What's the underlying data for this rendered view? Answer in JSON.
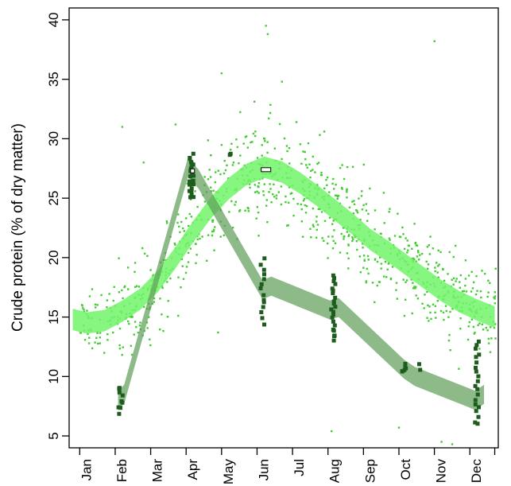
{
  "chart_data": {
    "type": "scatter",
    "ylabel": "Crude protein (% of dry matter)",
    "xlabel": "",
    "ylim": [
      4,
      41
    ],
    "xlim": [
      0.5,
      12.6
    ],
    "categories": [
      "Jan",
      "Feb",
      "Mar",
      "Apr",
      "May",
      "Jun",
      "Jul",
      "Aug",
      "Sep",
      "Oct",
      "Nov",
      "Dec"
    ],
    "x_ticks": [
      1,
      2,
      3,
      4,
      5,
      6,
      7,
      8,
      9,
      10,
      11,
      12
    ],
    "y_ticks": [
      5,
      10,
      15,
      20,
      25,
      30,
      35,
      40
    ],
    "grid": false,
    "series": [
      {
        "kind": "points",
        "color": "#44cc33",
        "trend": {
          "x": [
            0.6,
            1,
            1.5,
            2,
            2.5,
            3,
            3.5,
            4,
            4.5,
            5,
            5.5,
            6,
            6.5,
            7,
            7.5,
            8,
            8.5,
            9,
            9.5,
            10,
            10.5,
            11,
            11.5,
            12,
            12.5
          ],
          "y": [
            14.8,
            14.5,
            14.7,
            15.5,
            16.5,
            18.0,
            20.0,
            22.2,
            24.2,
            25.8,
            27.0,
            27.6,
            27.2,
            26.3,
            25.2,
            24.0,
            22.8,
            21.5,
            20.5,
            19.4,
            18.3,
            17.2,
            16.3,
            15.6,
            15.0
          ],
          "band": 0.9
        },
        "anchors": {
          "x": [
            1,
            1.5,
            2,
            2.5,
            3,
            3.5,
            4,
            4.5,
            5,
            5.5,
            6,
            6.5,
            7,
            7.5,
            8,
            8.5,
            9,
            9.5,
            10,
            10.5,
            11,
            11.5,
            12,
            12.5
          ],
          "sd": [
            2.5,
            2.5,
            2.8,
            3,
            3.2,
            3.5,
            3.8,
            4,
            4,
            4,
            3.8,
            3.6,
            3.5,
            3.5,
            3.6,
            3.6,
            3.5,
            3.4,
            3.4,
            3.3,
            3.2,
            3.2,
            3.2,
            3
          ]
        },
        "outliers": [
          [
            6.05,
            39.5
          ],
          [
            6.1,
            38.8
          ],
          [
            10.8,
            38.2
          ],
          [
            4.8,
            35.5
          ],
          [
            2.0,
            31.0
          ],
          [
            7.9,
            5.4
          ],
          [
            9.8,
            5.7
          ],
          [
            11.0,
            4.5
          ],
          [
            11.3,
            4.3
          ],
          [
            4.7,
            13.7
          ],
          [
            5.5,
            30.2
          ],
          [
            6.5,
            34.8
          ],
          [
            2.6,
            28.0
          ],
          [
            3.5,
            31.2
          ]
        ]
      },
      {
        "kind": "squares",
        "color": "#1d5c1d",
        "trend": {
          "x": [
            1.88,
            2.05,
            3.85,
            4.15,
            5.95,
            6.2,
            7.85,
            8.1,
            9.95,
            10.25,
            11.95,
            12.2
          ],
          "y": [
            8.0,
            8.5,
            27.6,
            26.6,
            17.3,
            17.6,
            15.6,
            15.8,
            10.6,
            10.0,
            8.0,
            8.5
          ],
          "band": 0.8
        },
        "clusters": [
          {
            "x": 1.95,
            "ymin": 7.0,
            "ymax": 9.1,
            "count": 9
          },
          {
            "x": 3.95,
            "ymin": 25.0,
            "ymax": 28.6,
            "count": 22
          },
          {
            "x": 5.0,
            "ymin": 28.5,
            "ymax": 28.8,
            "count": 2
          },
          {
            "x": 5.95,
            "ymin": 14.5,
            "ymax": 19.8,
            "count": 14
          },
          {
            "x": 7.95,
            "ymin": 13.0,
            "ymax": 18.5,
            "count": 22
          },
          {
            "x": 9.95,
            "ymin": 10.3,
            "ymax": 11.0,
            "count": 6
          },
          {
            "x": 10.35,
            "ymin": 10.6,
            "ymax": 10.9,
            "count": 2
          },
          {
            "x": 12.0,
            "ymin": 5.9,
            "ymax": 13.0,
            "count": 20
          }
        ]
      }
    ],
    "markers": [
      {
        "x": 3.98,
        "y": 27.3,
        "shape": "open-square"
      },
      {
        "x": 6.05,
        "y": 27.4,
        "shape": "open-rect"
      }
    ]
  }
}
